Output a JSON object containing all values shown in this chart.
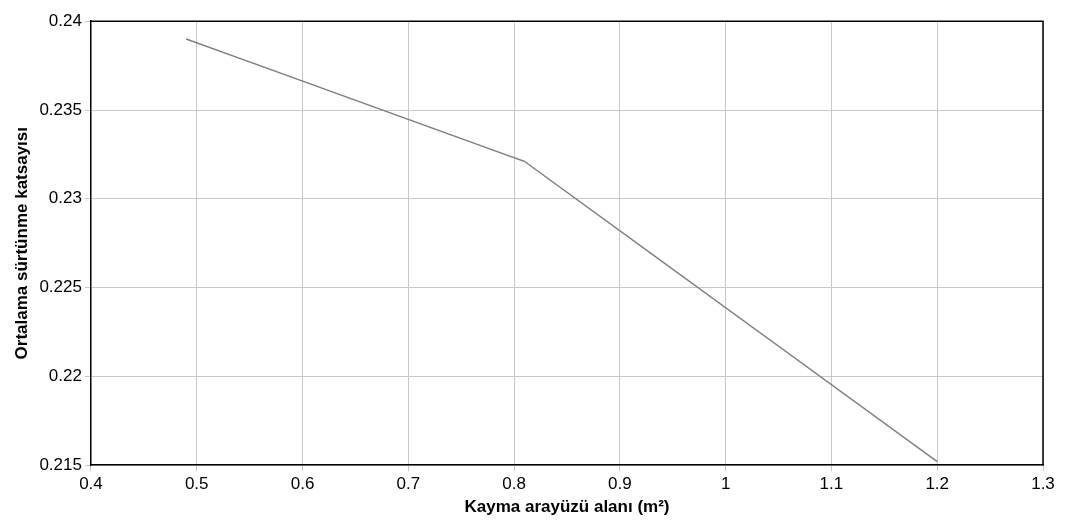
{
  "chart_data": {
    "type": "line",
    "xlabel": "Kayma arayüzü alanı (m²)",
    "ylabel": "Ortalama sürtünme katsayısı",
    "x": [
      0.49,
      0.81,
      1.2
    ],
    "series": [
      {
        "color": "#808080",
        "values": [
          0.239,
          0.2321,
          0.2152
        ]
      }
    ],
    "xlim": [
      0.4,
      1.3
    ],
    "xticks": [
      0.4,
      0.5,
      0.6,
      0.7,
      0.8,
      0.9,
      1,
      1.1,
      1.2,
      1.3
    ],
    "ylim": [
      0.215,
      0.24
    ],
    "yticks": [
      0.215,
      0.22,
      0.225,
      0.23,
      0.235,
      0.24
    ],
    "grid": true,
    "legend": false,
    "marker": "none",
    "line_style": "solid"
  }
}
